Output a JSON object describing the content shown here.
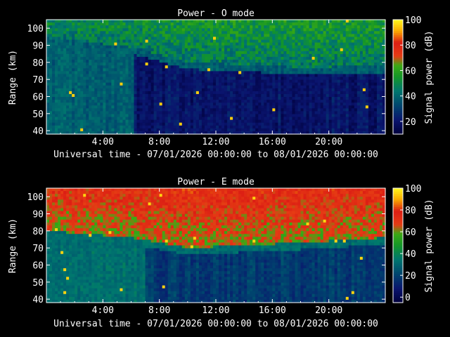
{
  "chart_data": [
    {
      "type": "heatmap",
      "title": "Power - O mode",
      "xlabel": "Universal time - 07/01/2026 00:00:00 to 08/01/2026 00:00:00",
      "ylabel": "Range (km)",
      "xlim": [
        0,
        24
      ],
      "ylim": [
        38,
        105
      ],
      "x_ticks": [
        "4:00",
        "8:00",
        "12:00",
        "16:00",
        "20:00"
      ],
      "y_ticks": [
        "40",
        "50",
        "60",
        "70",
        "80",
        "90",
        "100"
      ],
      "colorbar": {
        "label": "Signal power (dB)",
        "ticks": [
          "20",
          "40",
          "60",
          "80",
          "100"
        ],
        "range": [
          10,
          100
        ]
      },
      "description_values": {
        "background_dB": 38,
        "low_region_dB_after_0600": 20,
        "high_region_dB": 45,
        "boundary_km": [
          {
            "t": 0,
            "km": 95
          },
          {
            "t": 6.5,
            "km": 88
          },
          {
            "t": 10,
            "km": 80
          },
          {
            "t": 18,
            "km": 77
          },
          {
            "t": 24,
            "km": 78
          }
        ]
      }
    },
    {
      "type": "heatmap",
      "title": "Power - E mode",
      "xlabel": "Universal time - 07/01/2026 00:00:00 to 08/01/2026 00:00:00",
      "ylabel": "Range (km)",
      "xlim": [
        0,
        24
      ],
      "ylim": [
        38,
        105
      ],
      "x_ticks": [
        "4:00",
        "8:00",
        "12:00",
        "16:00",
        "20:00"
      ],
      "y_ticks": [
        "40",
        "50",
        "60",
        "70",
        "80",
        "90",
        "100"
      ],
      "colorbar": {
        "label": "Signal power (dB)",
        "ticks": [
          "0",
          "20",
          "40",
          "60",
          "80",
          "100"
        ],
        "range": [
          -5,
          100
        ]
      },
      "description_values": {
        "background_dB": 32,
        "low_region_dB_after_0700": 18,
        "high_region_dB": 62,
        "boundary_km": [
          {
            "t": 0,
            "km": 80
          },
          {
            "t": 6,
            "km": 76
          },
          {
            "t": 10,
            "km": 70
          },
          {
            "t": 18,
            "km": 73
          },
          {
            "t": 24,
            "km": 76
          }
        ]
      }
    }
  ],
  "colors": {
    "background": "#000000",
    "axis": "#ffffff",
    "text": "#ffffff"
  }
}
